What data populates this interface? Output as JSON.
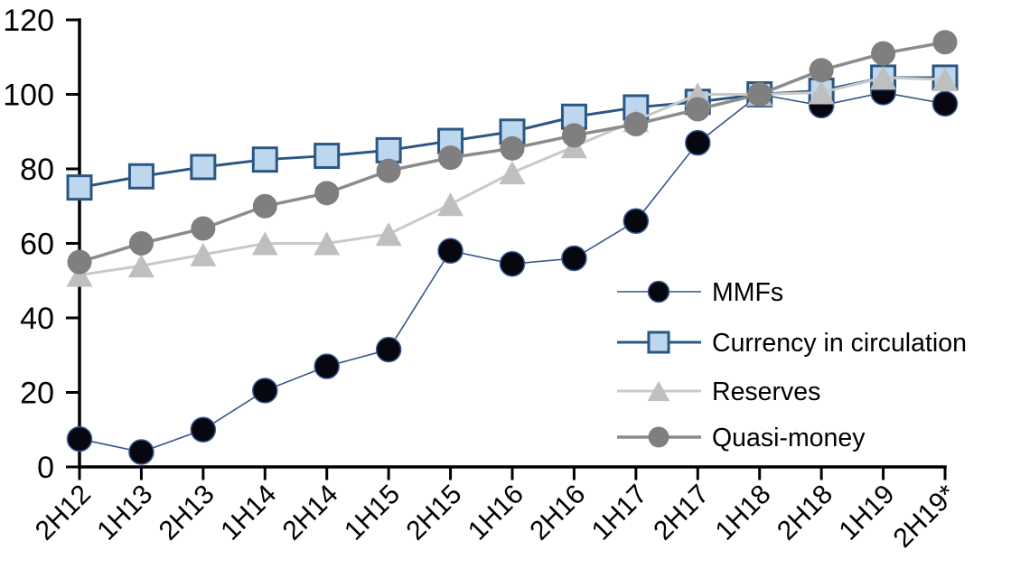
{
  "chart_data": {
    "type": "line",
    "title": "",
    "xlabel": "",
    "ylabel": "",
    "categories": [
      "2H12",
      "1H13",
      "2H13",
      "1H14",
      "2H14",
      "1H15",
      "2H15",
      "1H16",
      "2H16",
      "1H17",
      "2H17",
      "1H18",
      "2H18",
      "1H19",
      "2H19*"
    ],
    "ylim": [
      0,
      120
    ],
    "yticks": [
      0,
      20,
      40,
      60,
      80,
      100,
      120
    ],
    "grid": false,
    "legend_position": "inside-right",
    "axis_color": "#000000",
    "background_color": "#ffffff",
    "series": [
      {
        "name": "MMFs",
        "marker": "circle",
        "values": [
          7.5,
          4,
          10,
          20.5,
          27,
          31.5,
          58,
          54.5,
          56,
          66,
          87,
          100,
          97,
          100.5,
          97.5
        ],
        "line_color": "#35558c",
        "line_width": 1.6,
        "marker_fill": "#07070f",
        "marker_stroke": "#3a5c94",
        "marker_stroke_width": 1.5,
        "marker_size": 27
      },
      {
        "name": "Currency in circulation",
        "marker": "square",
        "values": [
          75,
          78,
          80.5,
          82.5,
          83.5,
          85,
          87.5,
          90,
          94,
          96.5,
          98,
          100,
          101,
          104.5,
          104.5
        ],
        "line_color": "#2a5783",
        "line_width": 3,
        "marker_fill": "#bdd7ee",
        "marker_stroke": "#2a5783",
        "marker_stroke_width": 3,
        "marker_size": 26
      },
      {
        "name": "Reserves",
        "marker": "triangle",
        "values": [
          51.5,
          54,
          57,
          60,
          60,
          62.5,
          70.5,
          79,
          86,
          93,
          100,
          100,
          100.5,
          104.5,
          104
        ],
        "line_color": "#c9c9c9",
        "line_width": 3,
        "marker_fill": "#bfbfbf",
        "marker_stroke": "none",
        "marker_stroke_width": 0,
        "marker_size": 29
      },
      {
        "name": "Quasi-money",
        "marker": "circle",
        "values": [
          55,
          60,
          64,
          70,
          73.5,
          79.5,
          83,
          85.5,
          89,
          92,
          96,
          100,
          106.5,
          111,
          114
        ],
        "line_color": "#8c8c8c",
        "line_width": 3.5,
        "marker_fill": "#7f7f7f",
        "marker_stroke": "none",
        "marker_stroke_width": 0,
        "marker_size": 27
      }
    ]
  }
}
